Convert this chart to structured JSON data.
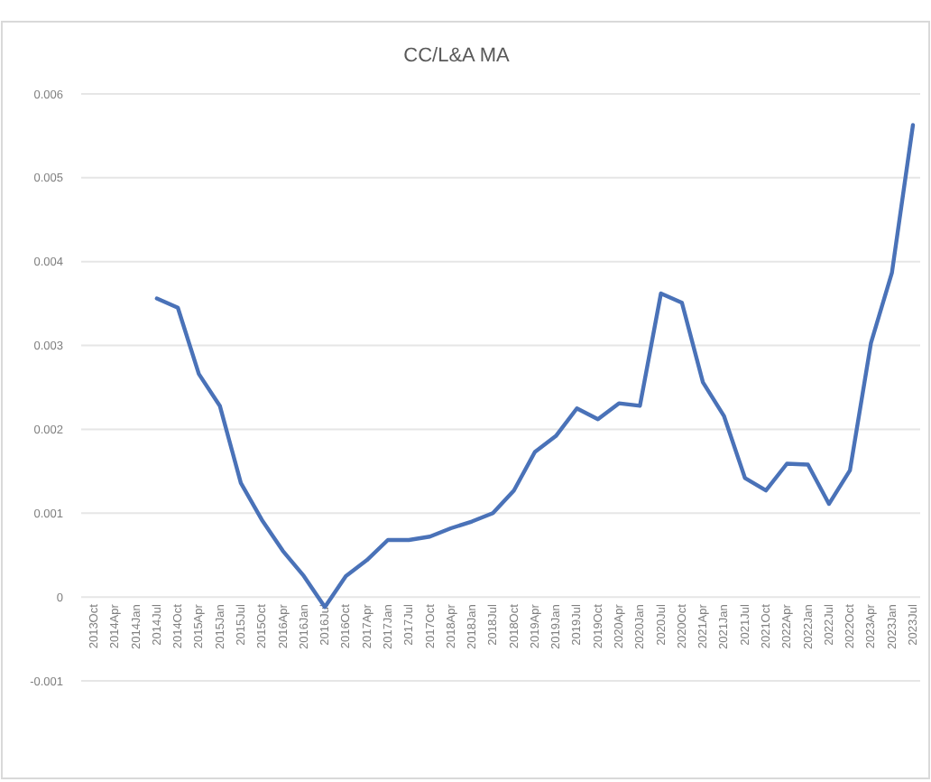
{
  "chart_data": {
    "type": "line",
    "title": "CC/L&A MA",
    "categories": [
      "2013Oct",
      "2014Apr",
      "2014Jan",
      "2014Jul",
      "2014Oct",
      "2015Apr",
      "2015Jan",
      "2015Jul",
      "2015Oct",
      "2016Apr",
      "2016Jan",
      "2016Jul",
      "2016Oct",
      "2017Apr",
      "2017Jan",
      "2017Jul",
      "2017Oct",
      "2018Apr",
      "2018Jan",
      "2018Jul",
      "2018Oct",
      "2019Apr",
      "2019Jan",
      "2019Jul",
      "2019Oct",
      "2020Apr",
      "2020Jan",
      "2020Jul",
      "2020Oct",
      "2021Apr",
      "2021Jan",
      "2021Jul",
      "2021Oct",
      "2022Apr",
      "2022Jan",
      "2022Jul",
      "2022Oct",
      "2023Apr",
      "2023Jan",
      "2023Jul"
    ],
    "series": [
      {
        "color": "#4a72b8",
        "values": [
          null,
          null,
          null,
          0.00356,
          0.00345,
          0.00266,
          0.00228,
          0.00136,
          0.00092,
          0.00055,
          0.00025,
          -0.00012,
          0.00025,
          0.00044,
          0.00068,
          0.00068,
          0.00072,
          0.00082,
          0.0009,
          0.001,
          0.00127,
          0.00173,
          0.00192,
          0.00225,
          0.00212,
          0.00231,
          0.00228,
          0.00362,
          0.00351,
          0.00256,
          0.00216,
          0.00142,
          0.00127,
          0.00159,
          0.00158,
          0.00111,
          0.00151,
          0.00303,
          0.00387,
          0.00563
        ]
      }
    ],
    "ylim": [
      -0.001,
      0.006
    ],
    "yticks": [
      -0.001,
      0,
      0.001,
      0.002,
      0.003,
      0.004,
      0.005,
      0.006
    ],
    "grid": "y",
    "marker": "none",
    "line_style": "solid"
  }
}
